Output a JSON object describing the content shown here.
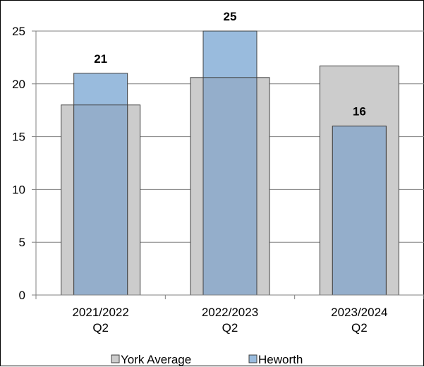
{
  "chart_data": {
    "type": "bar",
    "categories": [
      [
        "2021/2022",
        "Q2"
      ],
      [
        "2022/2023",
        "Q2"
      ],
      [
        "2023/2024",
        "Q2"
      ]
    ],
    "series": [
      {
        "name": "York Average",
        "values": [
          18,
          20.6,
          21.7
        ],
        "color": "#cccccc"
      },
      {
        "name": "Heworth",
        "values": [
          21,
          25,
          16
        ],
        "color": "#99bbdd"
      }
    ],
    "data_labels": [
      "21",
      "25",
      "16"
    ],
    "ylim": [
      0,
      25
    ],
    "yticks": [
      "0",
      "5",
      "10",
      "15",
      "20",
      "25"
    ],
    "grid": true,
    "legend": "bottom",
    "colors": {
      "grid": "#808080",
      "york_average_fill": "#cccccc",
      "heworth_fill": "#99bbdd",
      "overlap_fill": "#94aecb",
      "bar_stroke": "#404040"
    }
  }
}
